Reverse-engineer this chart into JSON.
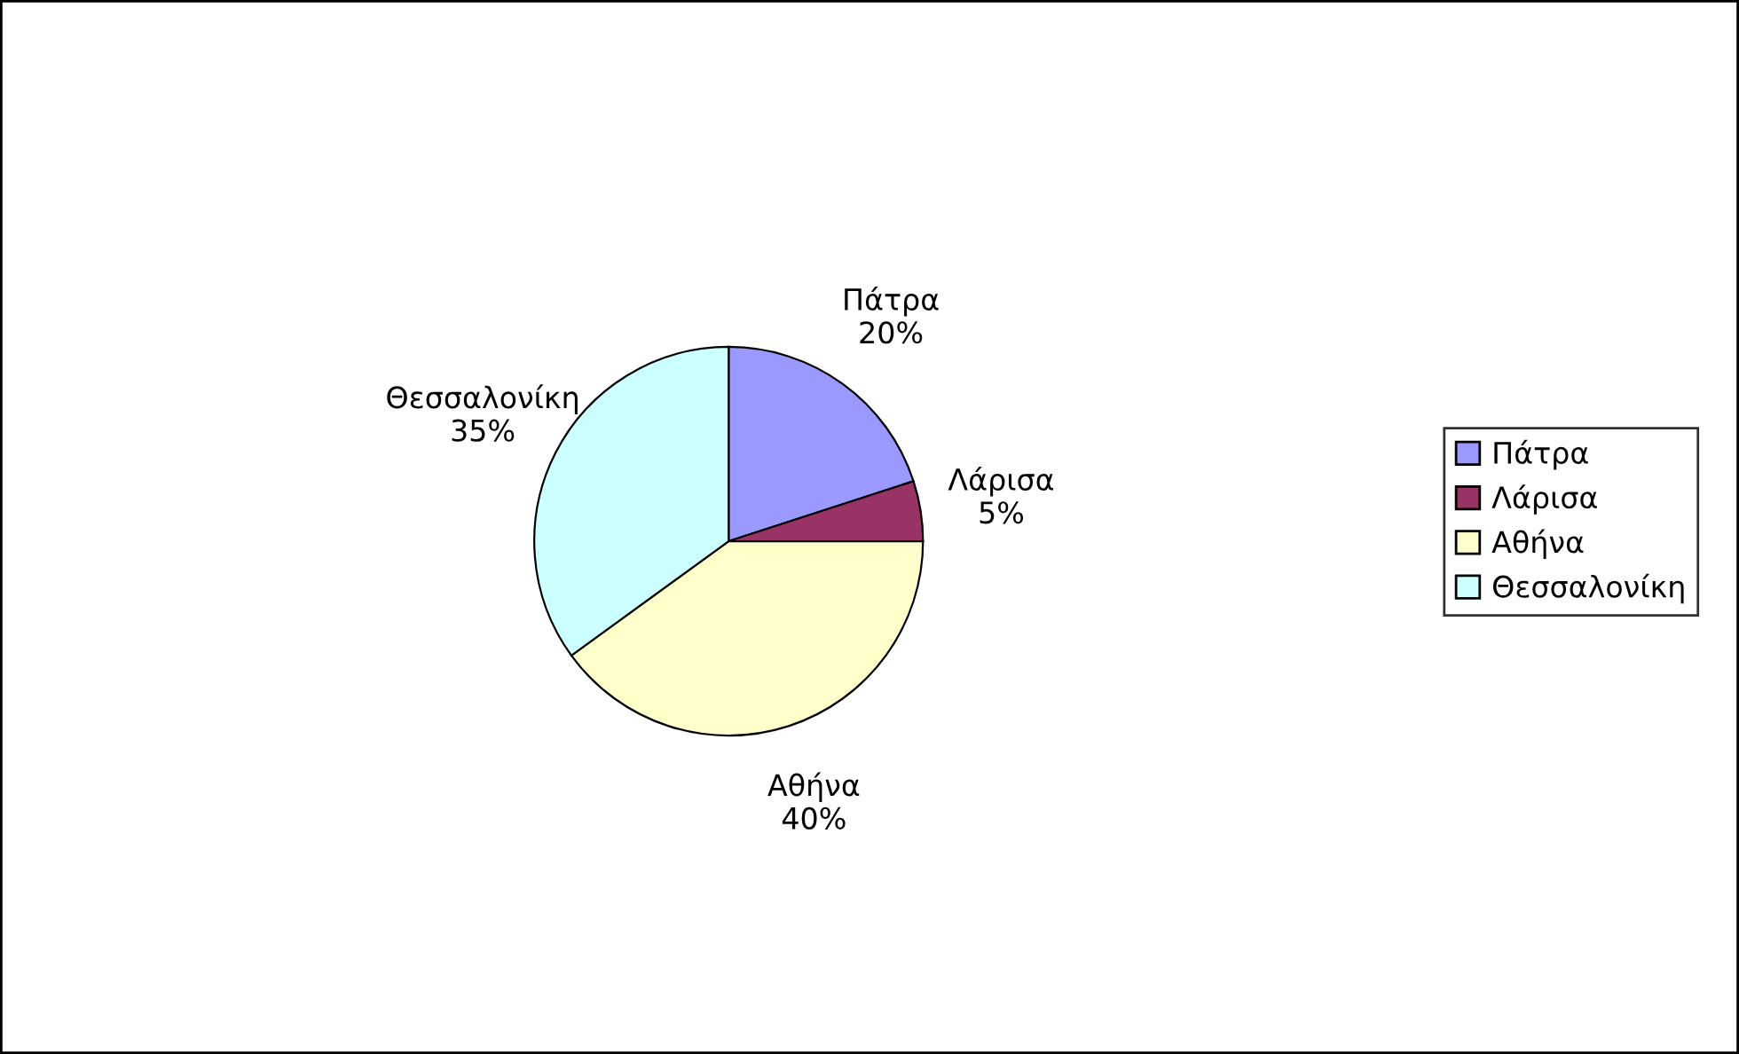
{
  "chart_data": {
    "type": "pie",
    "categories": [
      "Πάτρα",
      "Λάρισα",
      "Αθήνα",
      "Θεσσαλονίκη"
    ],
    "values": [
      20,
      5,
      40,
      35
    ],
    "value_labels": [
      "20%",
      "5%",
      "40%",
      "35%"
    ],
    "colors": [
      "#9999ff",
      "#993366",
      "#ffffcc",
      "#ccffff"
    ],
    "legend": "right"
  }
}
